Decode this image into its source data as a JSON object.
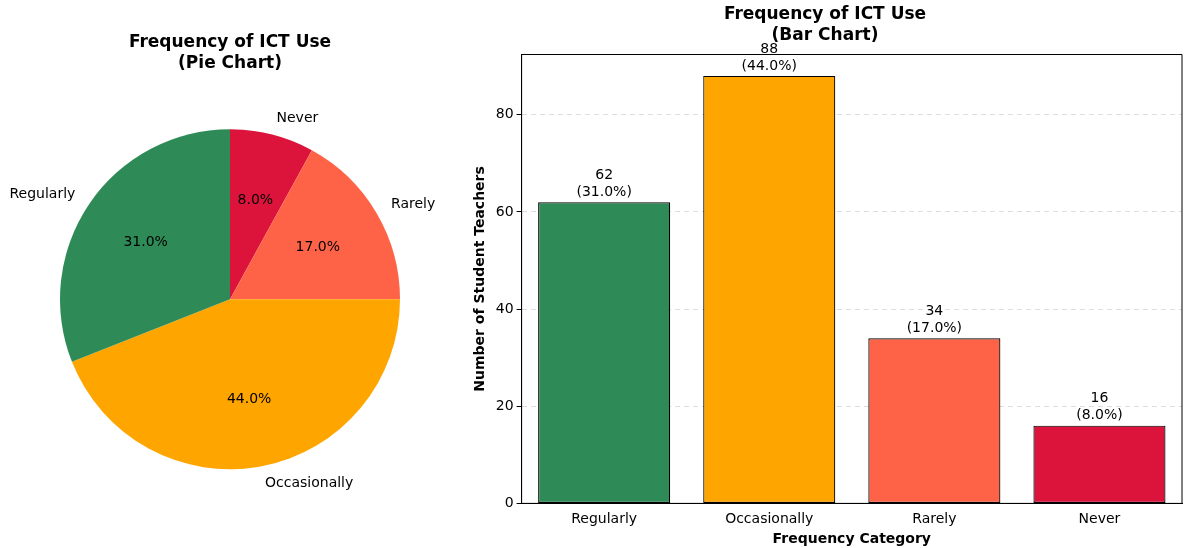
{
  "chart_data": [
    {
      "type": "pie",
      "title": "Frequency of ICT Use\n(Pie Chart)",
      "categories": [
        "Regularly",
        "Occasionally",
        "Rarely",
        "Never"
      ],
      "values": [
        31,
        44,
        17,
        8
      ],
      "colors": [
        "#2e8b57",
        "#ffa500",
        "#ff6347",
        "#dc143c"
      ],
      "value_labels": [
        "31.0%",
        "44.0%",
        "17.0%",
        "8.0%"
      ]
    },
    {
      "type": "bar",
      "title": "Frequency of ICT Use\n(Bar Chart)",
      "categories": [
        "Regularly",
        "Occasionally",
        "Rarely",
        "Never"
      ],
      "values": [
        62,
        88,
        34,
        16
      ],
      "colors": [
        "#2e8b57",
        "#ffa500",
        "#ff6347",
        "#dc143c"
      ],
      "value_labels": [
        "62\n(31.0%)",
        "88\n(44.0%)",
        "34\n(17.0%)",
        "16\n(8.0%)"
      ],
      "xlabel": "Frequency Category",
      "ylabel": "Number of Student Teachers",
      "ylim": [
        0,
        92.4
      ],
      "yticks": [
        0,
        20,
        40,
        60,
        80
      ],
      "grid": "y"
    }
  ]
}
